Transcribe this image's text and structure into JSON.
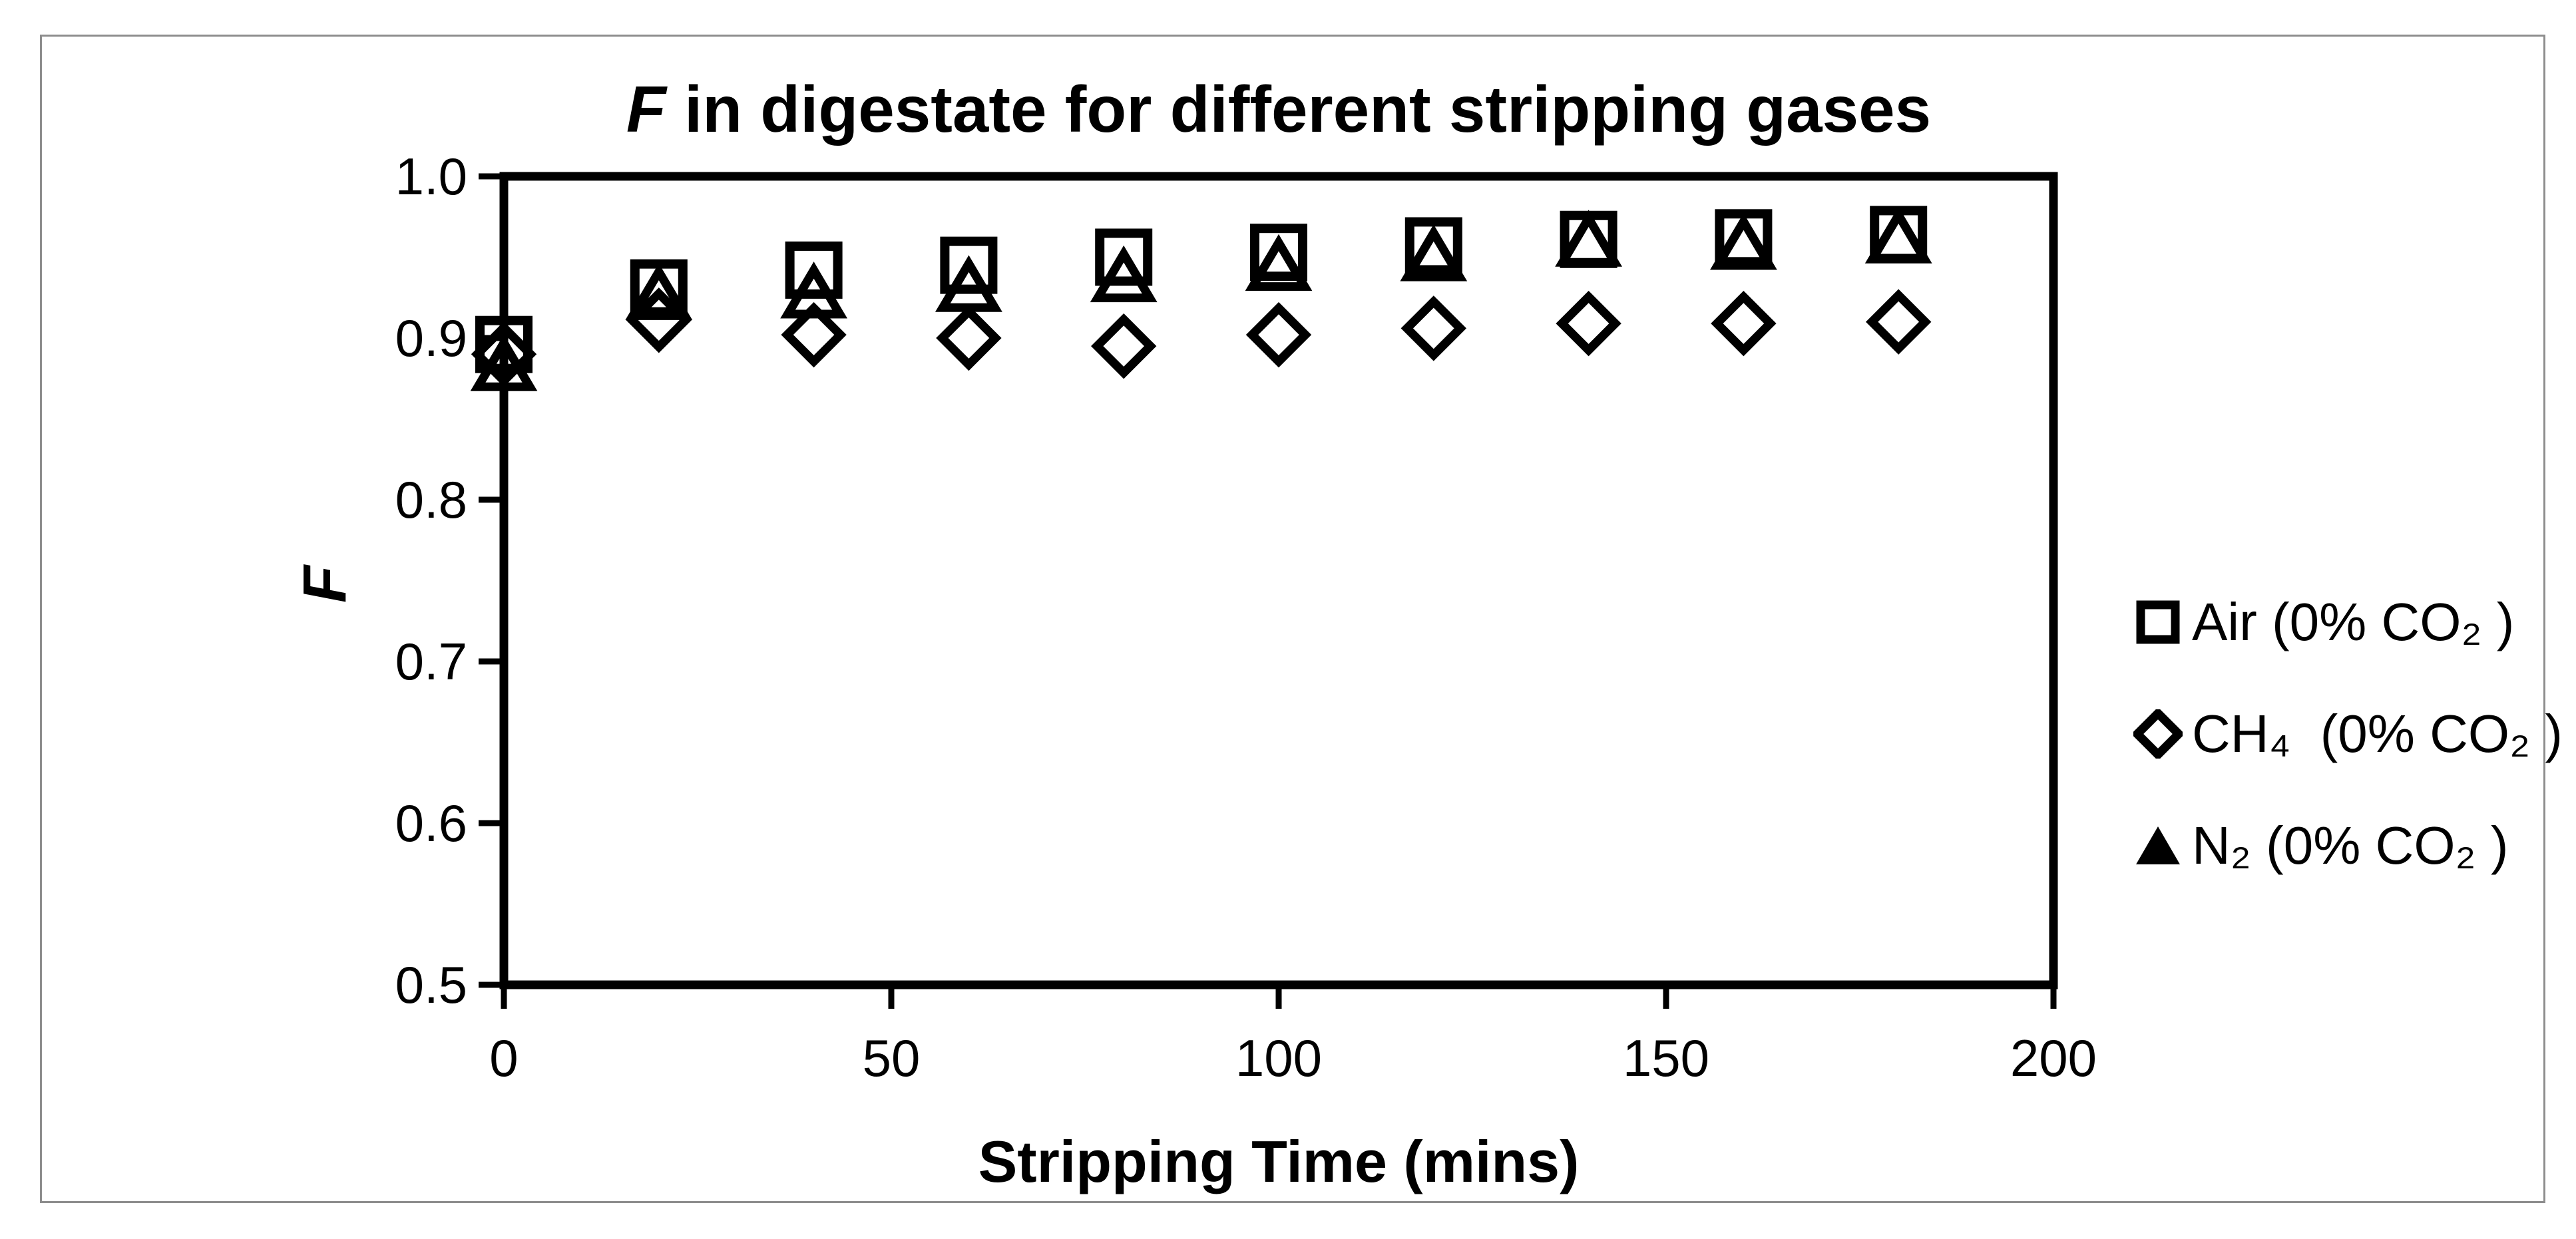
{
  "chart_data": {
    "type": "scatter",
    "title_italic": "F",
    "title_rest": " in digestate for different stripping gases",
    "xlabel": "Stripping Time (mins)",
    "ylabel": "F",
    "xlim": [
      0,
      200
    ],
    "ylim": [
      0.5,
      1.0
    ],
    "x_ticks": [
      0,
      50,
      100,
      150,
      200
    ],
    "x_tick_labels": [
      "0",
      "50",
      "100",
      "150",
      "200"
    ],
    "y_ticks": [
      0.5,
      0.6,
      0.7,
      0.8,
      0.9,
      1.0
    ],
    "y_tick_labels": [
      "0.5",
      "0.6",
      "0.7",
      "0.8",
      "0.9",
      "1.0"
    ],
    "grid": false,
    "legend_position": "right",
    "x": [
      0,
      20,
      40,
      60,
      80,
      100,
      120,
      140,
      160,
      180
    ],
    "series": [
      {
        "name": "Air (0% CO₂ )",
        "marker": "square",
        "values": [
          0.896,
          0.931,
          0.942,
          0.945,
          0.95,
          0.953,
          0.957,
          0.961,
          0.962,
          0.964
        ]
      },
      {
        "name": "CH₄  (0% CO₂ )",
        "marker": "diamond",
        "values": [
          0.89,
          0.911,
          0.902,
          0.9,
          0.895,
          0.902,
          0.906,
          0.909,
          0.909,
          0.91
        ]
      },
      {
        "name": "N₂ (0% CO₂ )",
        "marker": "triangle",
        "values": [
          0.883,
          0.927,
          0.928,
          0.932,
          0.938,
          0.945,
          0.951,
          0.96,
          0.958,
          0.962
        ]
      }
    ],
    "colors": {
      "marker": "#000000",
      "axis": "#000000",
      "frame_border": "#8d8d8d",
      "background": "#ffffff"
    }
  }
}
